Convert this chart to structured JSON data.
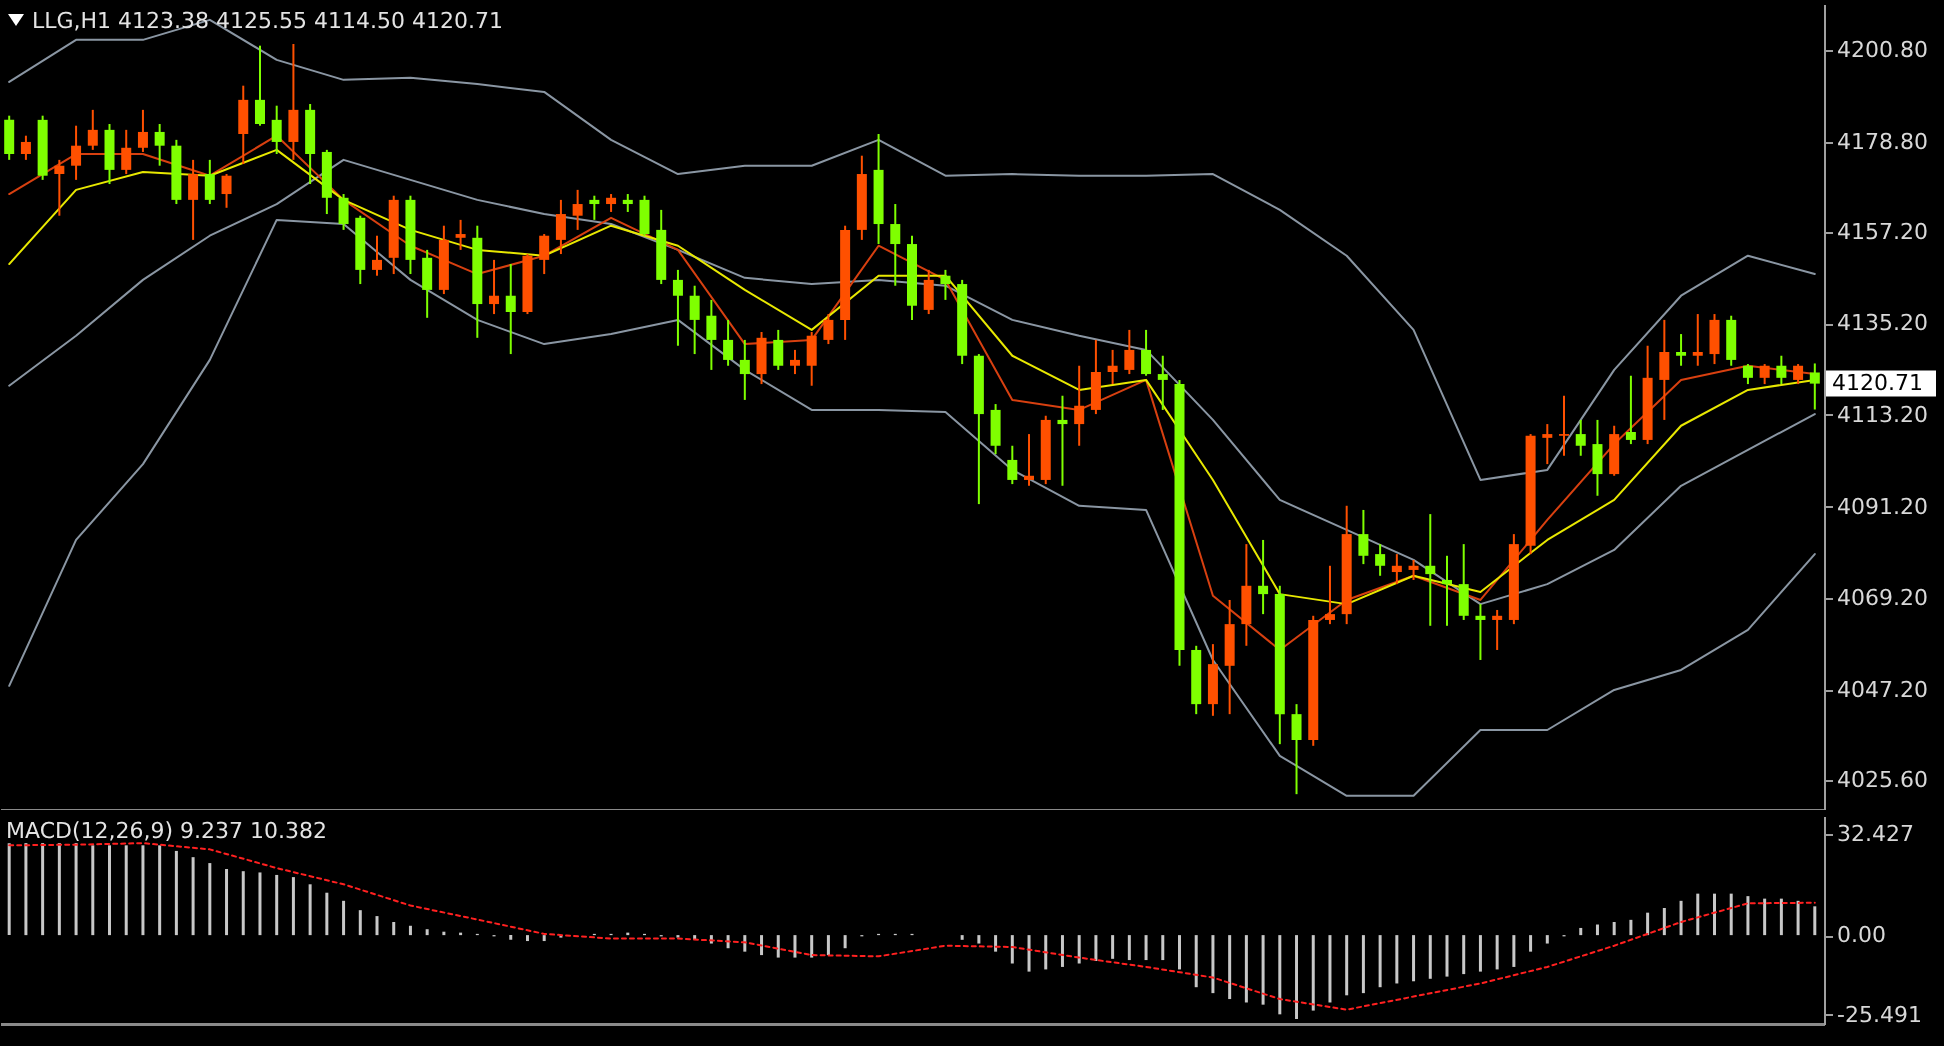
{
  "chart_data": [
    {
      "type": "candlestick",
      "title": "LLG,H1  4123.38 4125.55 4114.50 4120.71",
      "categories": [
        null,
        null,
        null,
        null,
        null,
        null,
        null,
        null,
        null,
        null,
        null,
        null,
        null,
        null,
        null,
        null,
        null,
        null,
        null,
        null,
        null,
        null,
        null,
        null,
        null,
        null,
        null,
        null,
        null,
        null,
        null,
        null,
        null,
        null,
        null,
        null,
        null,
        null,
        null,
        null,
        null,
        null,
        null,
        null,
        null,
        null,
        null,
        null,
        null,
        null,
        null,
        null,
        null,
        null,
        null,
        null,
        null,
        null,
        null,
        null,
        null,
        null,
        null,
        null,
        null,
        null,
        null,
        null,
        null,
        null,
        null,
        null,
        null,
        null,
        null,
        null,
        null,
        null,
        null,
        null,
        null,
        null,
        null,
        null,
        null,
        null,
        null,
        null,
        null,
        null,
        null,
        null,
        null,
        null,
        null,
        null,
        null,
        null,
        null,
        null,
        null,
        null,
        null,
        null,
        null,
        null,
        null,
        null,
        null
      ],
      "ohlc": [
        [
          4184.0,
          4185.0,
          4174.4,
          4175.8
        ],
        [
          4175.8,
          4180.2,
          4174.4,
          4178.7
        ],
        [
          4184.0,
          4185.0,
          4169.6,
          4170.6
        ],
        [
          4171.0,
          4174.4,
          4161.0,
          4173.0
        ],
        [
          4173.0,
          4182.6,
          4169.6,
          4177.8
        ],
        [
          4177.8,
          4186.4,
          4176.8,
          4181.6
        ],
        [
          4181.6,
          4183.0,
          4168.6,
          4172.0
        ],
        [
          4172.0,
          4181.6,
          4171.0,
          4177.3
        ],
        [
          4177.3,
          4186.4,
          4176.3,
          4181.1
        ],
        [
          4181.1,
          4183.0,
          4173.0,
          4177.8
        ],
        [
          4177.8,
          4179.2,
          4163.8,
          4164.8
        ],
        [
          4164.8,
          4174.4,
          4155.2,
          4171.0
        ],
        [
          4171.0,
          4174.4,
          4163.8,
          4164.8
        ],
        [
          4166.2,
          4171.0,
          4162.9,
          4170.6
        ],
        [
          4180.6,
          4192.2,
          4173.4,
          4188.8
        ],
        [
          4188.8,
          4201.8,
          4182.6,
          4183.0
        ],
        [
          4184.0,
          4187.4,
          4175.8,
          4178.7
        ],
        [
          4178.7,
          4202.2,
          4174.4,
          4186.4
        ],
        [
          4186.4,
          4187.8,
          4168.6,
          4175.8
        ],
        [
          4176.3,
          4176.8,
          4161.4,
          4165.3
        ],
        [
          4165.3,
          4166.2,
          4157.6,
          4159.0
        ],
        [
          4160.5,
          4161.0,
          4144.6,
          4148.0
        ],
        [
          4148.0,
          4156.2,
          4146.6,
          4150.4
        ],
        [
          4150.9,
          4165.8,
          4147.0,
          4164.8
        ],
        [
          4164.8,
          4165.8,
          4147.0,
          4150.4
        ],
        [
          4150.9,
          4152.8,
          4136.5,
          4143.2
        ],
        [
          4143.2,
          4158.6,
          4142.2,
          4155.2
        ],
        [
          4155.7,
          4160.0,
          4152.8,
          4156.6
        ],
        [
          4155.7,
          4158.6,
          4131.7,
          4139.8
        ],
        [
          4139.8,
          4150.4,
          4137.4,
          4141.8
        ],
        [
          4141.8,
          4149.4,
          4127.8,
          4137.9
        ],
        [
          4137.9,
          4151.8,
          4137.4,
          4151.4
        ],
        [
          4150.4,
          4156.6,
          4147.0,
          4156.2
        ],
        [
          4155.2,
          4164.8,
          4151.8,
          4161.4
        ],
        [
          4161.0,
          4167.2,
          4157.6,
          4163.8
        ],
        [
          4164.8,
          4165.8,
          4160.0,
          4163.8
        ],
        [
          4163.8,
          4166.2,
          4161.9,
          4165.3
        ],
        [
          4164.8,
          4166.2,
          4161.9,
          4163.8
        ],
        [
          4164.8,
          4165.8,
          4156.2,
          4156.6
        ],
        [
          4157.6,
          4162.4,
          4144.6,
          4145.6
        ],
        [
          4145.6,
          4148.0,
          4129.8,
          4141.8
        ],
        [
          4141.8,
          4144.2,
          4127.8,
          4136.0
        ],
        [
          4137.0,
          4140.8,
          4124.0,
          4131.2
        ],
        [
          4131.2,
          4136.0,
          4125.0,
          4126.4
        ],
        [
          4126.4,
          4131.2,
          4116.8,
          4123.0
        ],
        [
          4123.0,
          4133.1,
          4120.6,
          4131.7
        ],
        [
          4131.2,
          4133.6,
          4124.0,
          4125.0
        ],
        [
          4125.0,
          4128.8,
          4123.0,
          4126.4
        ],
        [
          4125.0,
          4133.1,
          4120.2,
          4132.2
        ],
        [
          4131.2,
          4137.4,
          4130.2,
          4136.0
        ],
        [
          4136.0,
          4158.6,
          4131.2,
          4157.6
        ],
        [
          4157.6,
          4175.4,
          4155.2,
          4171.0
        ],
        [
          4172.0,
          4180.6,
          4154.2,
          4159.0
        ],
        [
          4159.0,
          4163.8,
          4144.2,
          4154.2
        ],
        [
          4154.2,
          4156.2,
          4136.0,
          4139.4
        ],
        [
          4138.4,
          4148.0,
          4137.4,
          4145.6
        ],
        [
          4146.6,
          4148.0,
          4140.8,
          4144.6
        ],
        [
          4144.6,
          4145.6,
          4125.4,
          4127.4
        ],
        [
          4127.4,
          4127.8,
          4091.8,
          4113.4
        ],
        [
          4114.4,
          4115.8,
          4103.8,
          4105.8
        ],
        [
          4102.4,
          4105.8,
          4096.6,
          4097.6
        ],
        [
          4097.6,
          4108.6,
          4096.2,
          4098.6
        ],
        [
          4097.6,
          4113.0,
          4096.6,
          4112.0
        ],
        [
          4112.0,
          4117.8,
          4096.2,
          4111.0
        ],
        [
          4111.0,
          4125.0,
          4105.8,
          4115.4
        ],
        [
          4114.4,
          4131.2,
          4113.4,
          4123.5
        ],
        [
          4123.5,
          4128.8,
          4120.6,
          4125.0
        ],
        [
          4124.0,
          4133.6,
          4123.0,
          4128.8
        ],
        [
          4128.8,
          4133.6,
          4122.6,
          4123.0
        ],
        [
          4123.0,
          4127.4,
          4114.4,
          4121.6
        ],
        [
          4120.6,
          4121.6,
          4053.0,
          4056.8
        ],
        [
          4056.8,
          4057.8,
          4041.4,
          4043.8
        ],
        [
          4043.8,
          4058.2,
          4041.0,
          4053.4
        ],
        [
          4053.0,
          4068.8,
          4041.4,
          4063.0
        ],
        [
          4063.0,
          4082.2,
          4057.8,
          4072.2
        ],
        [
          4072.2,
          4083.2,
          4065.4,
          4070.2
        ],
        [
          4070.2,
          4072.2,
          4034.2,
          4041.4
        ],
        [
          4041.4,
          4043.8,
          4022.2,
          4035.2
        ],
        [
          4035.2,
          4065.0,
          4033.8,
          4064.0
        ],
        [
          4064.0,
          4077.0,
          4063.0,
          4065.4
        ],
        [
          4065.4,
          4091.4,
          4063.0,
          4084.6
        ],
        [
          4084.6,
          4090.4,
          4077.4,
          4079.4
        ],
        [
          4079.8,
          4082.2,
          4074.6,
          4077.0
        ],
        [
          4075.5,
          4079.8,
          4072.6,
          4077.0
        ],
        [
          4076.0,
          4078.4,
          4073.6,
          4077.0
        ],
        [
          4077.0,
          4089.4,
          4062.6,
          4075.0
        ],
        [
          4073.6,
          4079.4,
          4062.6,
          4072.6
        ],
        [
          4072.6,
          4082.2,
          4064.0,
          4065.0
        ],
        [
          4065.0,
          4067.8,
          4054.4,
          4064.0
        ],
        [
          4064.0,
          4066.4,
          4056.8,
          4065.0
        ],
        [
          4064.0,
          4084.6,
          4063.0,
          4082.2
        ],
        [
          4081.8,
          4108.6,
          4079.8,
          4108.2
        ],
        [
          4107.7,
          4111.0,
          4101.4,
          4108.6
        ],
        [
          4108.2,
          4117.8,
          4103.4,
          4108.6
        ],
        [
          4108.6,
          4112.0,
          4103.4,
          4105.8
        ],
        [
          4106.2,
          4112.0,
          4093.8,
          4099.0
        ],
        [
          4099.0,
          4110.6,
          4098.6,
          4108.6
        ],
        [
          4109.1,
          4122.6,
          4106.2,
          4107.2
        ],
        [
          4107.2,
          4129.8,
          4106.2,
          4122.1
        ],
        [
          4121.6,
          4136.0,
          4112.0,
          4128.3
        ],
        [
          4128.3,
          4132.6,
          4125.0,
          4127.4
        ],
        [
          4127.4,
          4137.4,
          4125.0,
          4128.3
        ],
        [
          4127.8,
          4137.4,
          4125.4,
          4136.0
        ],
        [
          4136.0,
          4137.0,
          4125.0,
          4126.4
        ],
        [
          4125.0,
          4125.4,
          4120.6,
          4122.1
        ],
        [
          4122.1,
          4125.4,
          4120.6,
          4125.0
        ],
        [
          4125.0,
          4127.4,
          4120.6,
          4122.1
        ],
        [
          4121.6,
          4125.4,
          4120.6,
          4125.0
        ],
        [
          4123.38,
          4125.55,
          4114.5,
          4120.71
        ]
      ],
      "colors": [
        "#7fff00",
        "#ff5000",
        "#7fff00",
        "#ff5000",
        "#ff5000",
        "#ff5000",
        "#7fff00",
        "#ff5000",
        "#ff5000",
        "#7fff00",
        "#7fff00",
        "#ff5000",
        "#7fff00",
        "#ff5000",
        "#ff5000",
        "#7fff00",
        "#7fff00",
        "#ff5000",
        "#7fff00",
        "#7fff00",
        "#7fff00",
        "#7fff00",
        "#ff5000",
        "#ff5000",
        "#7fff00",
        "#7fff00",
        "#ff5000",
        "#ff5000",
        "#7fff00",
        "#ff5000",
        "#7fff00",
        "#ff5000",
        "#ff5000",
        "#ff5000",
        "#ff5000",
        "#7fff00",
        "#ff5000",
        "#7fff00",
        "#7fff00",
        "#7fff00",
        "#7fff00",
        "#7fff00",
        "#7fff00",
        "#7fff00",
        "#7fff00",
        "#ff5000",
        "#7fff00",
        "#ff5000",
        "#ff5000",
        "#ff5000",
        "#ff5000",
        "#ff5000",
        "#7fff00",
        "#7fff00",
        "#7fff00",
        "#ff5000",
        "#7fff00",
        "#7fff00",
        "#7fff00",
        "#7fff00",
        "#7fff00",
        "#ff5000",
        "#ff5000",
        "#7fff00",
        "#ff5000",
        "#ff5000",
        "#ff5000",
        "#ff5000",
        "#7fff00",
        "#7fff00",
        "#7fff00",
        "#7fff00",
        "#ff5000",
        "#ff5000",
        "#ff5000",
        "#7fff00",
        "#7fff00",
        "#7fff00",
        "#ff5000",
        "#ff5000",
        "#ff5000",
        "#7fff00",
        "#7fff00",
        "#ff5000",
        "#ff5000",
        "#7fff00",
        "#7fff00",
        "#7fff00",
        "#7fff00",
        "#ff5000",
        "#ff5000",
        "#ff5000",
        "#ff5000",
        "#ff5000",
        "#7fff00",
        "#7fff00",
        "#ff5000",
        "#7fff00",
        "#ff5000",
        "#ff5000",
        "#7fff00",
        "#ff5000",
        "#ff5000",
        "#7fff00",
        "#7fff00",
        "#ff5000",
        "#7fff00",
        "#ff5000",
        "#7fff00"
      ],
      "series": [
        {
          "type": "line",
          "color": "#8a96a3",
          "values": [
            4193.1,
            null,
            null,
            null,
            4203.2,
            null,
            null,
            null,
            4203.2,
            null,
            null,
            null,
            4208.0,
            null,
            null,
            null,
            4198.4,
            null,
            null,
            null,
            4193.6,
            null,
            null,
            null,
            4194.1,
            null,
            null,
            null,
            4192.6,
            null,
            null,
            null,
            4190.7,
            null,
            null,
            null,
            4179.2,
            null,
            null,
            null,
            4171.0,
            null,
            null,
            null,
            4173.0,
            null,
            null,
            null,
            4173.0,
            null,
            null,
            null,
            4179.2,
            null,
            null,
            null,
            4170.6,
            null,
            null,
            null,
            4171.0,
            null,
            null,
            null,
            4170.6,
            null,
            null,
            null,
            4170.6,
            null,
            null,
            null,
            4171.0,
            null,
            null,
            null,
            4162.4,
            null,
            null,
            null,
            4151.4,
            null,
            null,
            null,
            4133.6,
            null,
            null,
            null,
            4097.6,
            null,
            null,
            null,
            4100.0,
            null,
            null,
            null,
            4124.0,
            null,
            null,
            null,
            4141.8,
            null,
            null,
            null,
            4151.4,
            null,
            null,
            null,
            4147.0
          ]
        },
        {
          "type": "line",
          "color": "#8a96a3",
          "values": [
            4120.2,
            null,
            null,
            null,
            4132.2,
            null,
            null,
            null,
            4145.6,
            null,
            null,
            null,
            4156.2,
            null,
            null,
            null,
            4163.8,
            null,
            null,
            null,
            4174.4,
            null,
            null,
            null,
            4169.6,
            null,
            null,
            null,
            4164.8,
            null,
            null,
            null,
            4161.4,
            null,
            null,
            null,
            4159.0,
            null,
            null,
            null,
            4152.8,
            null,
            null,
            null,
            4146.1,
            null,
            null,
            null,
            4144.6,
            null,
            null,
            null,
            4145.6,
            null,
            null,
            null,
            4144.2,
            null,
            null,
            null,
            4136.0,
            null,
            null,
            null,
            4132.2,
            null,
            null,
            null,
            4128.8,
            null,
            null,
            null,
            4112.0,
            null,
            null,
            null,
            4092.8,
            null,
            null,
            null,
            4085.6,
            null,
            null,
            null,
            4078.4,
            null,
            null,
            null,
            4067.8,
            null,
            null,
            null,
            4072.6,
            null,
            null,
            null,
            4080.8,
            null,
            null,
            null,
            4096.2,
            null,
            null,
            null,
            4104.8,
            null,
            null,
            null,
            4113.4
          ]
        },
        {
          "type": "line",
          "color": "#8a96a3",
          "values": [
            4048.2,
            null,
            null,
            null,
            4083.2,
            null,
            null,
            null,
            4101.4,
            null,
            null,
            null,
            4126.4,
            null,
            null,
            null,
            4160.0,
            null,
            null,
            null,
            4159.0,
            null,
            null,
            null,
            4145.6,
            null,
            null,
            null,
            4136.0,
            null,
            null,
            null,
            4130.2,
            null,
            null,
            null,
            4132.6,
            null,
            null,
            null,
            4136.0,
            null,
            null,
            null,
            4124.0,
            null,
            null,
            null,
            4114.4,
            null,
            null,
            null,
            4114.4,
            null,
            null,
            null,
            4113.9,
            null,
            null,
            null,
            4100.0,
            null,
            null,
            null,
            4091.4,
            null,
            null,
            null,
            4090.4,
            null,
            null,
            null,
            4054.4,
            null,
            null,
            null,
            4031.4,
            null,
            null,
            null,
            4021.8,
            null,
            null,
            null,
            4021.8,
            null,
            null,
            null,
            4037.6,
            null,
            null,
            null,
            4037.6,
            null,
            null,
            null,
            4047.2,
            null,
            null,
            null,
            4052.0,
            null,
            null,
            null,
            4061.6,
            null,
            null,
            null,
            4079.8
          ]
        },
        {
          "type": "line",
          "color": "#d84010",
          "values": [
            4166.2,
            null,
            null,
            null,
            4175.8,
            null,
            null,
            null,
            4175.8,
            null,
            null,
            null,
            4170.6,
            null,
            null,
            null,
            4180.2,
            null,
            null,
            null,
            4164.8,
            null,
            null,
            null,
            4153.8,
            null,
            null,
            null,
            4147.0,
            null,
            null,
            null,
            4151.4,
            null,
            null,
            null,
            4160.5,
            null,
            null,
            null,
            4152.8,
            null,
            null,
            null,
            4130.2,
            null,
            null,
            null,
            4131.2,
            null,
            null,
            null,
            4153.8,
            null,
            null,
            null,
            4145.6,
            null,
            null,
            null,
            4116.8,
            null,
            null,
            null,
            4114.4,
            null,
            null,
            null,
            4121.6,
            null,
            null,
            null,
            4069.8,
            null,
            null,
            null,
            4056.8,
            null,
            null,
            null,
            4068.8,
            null,
            null,
            null,
            4074.6,
            null,
            null,
            null,
            4068.8,
            null,
            null,
            null,
            4088.0,
            null,
            null,
            null,
            4106.2,
            null,
            null,
            null,
            4121.6,
            null,
            null,
            null,
            4125.0,
            null,
            null,
            null,
            4123.0
          ]
        },
        {
          "type": "line",
          "color": "#e8e800",
          "values": [
            4149.4,
            null,
            null,
            null,
            4167.2,
            null,
            null,
            null,
            4171.5,
            null,
            null,
            null,
            4170.6,
            null,
            null,
            null,
            4176.8,
            null,
            null,
            null,
            4164.8,
            null,
            null,
            null,
            4157.6,
            null,
            null,
            null,
            4152.8,
            null,
            null,
            null,
            4151.4,
            null,
            null,
            null,
            4158.6,
            null,
            null,
            null,
            4153.8,
            null,
            null,
            null,
            4143.2,
            null,
            null,
            null,
            4133.6,
            null,
            null,
            null,
            4146.6,
            null,
            null,
            null,
            4146.6,
            null,
            null,
            null,
            4127.4,
            null,
            null,
            null,
            4119.2,
            null,
            null,
            null,
            4121.6,
            null,
            null,
            null,
            4097.6,
            null,
            null,
            null,
            4070.2,
            null,
            null,
            null,
            4067.8,
            null,
            null,
            null,
            4074.6,
            null,
            null,
            null,
            4070.7,
            null,
            null,
            null,
            4083.2,
            null,
            null,
            null,
            4092.8,
            null,
            null,
            null,
            4110.6,
            null,
            null,
            null,
            4119.2,
            null,
            null,
            null,
            4121.6
          ]
        }
      ],
      "ylim": [
        4018.4,
        4211.8
      ],
      "yticks": [
        {
          "value": 4200.8,
          "label": "4200.80"
        },
        {
          "value": 4178.8,
          "label": "4178.80"
        },
        {
          "value": 4157.2,
          "label": "4157.20"
        },
        {
          "value": 4135.2,
          "label": "4135.20"
        },
        {
          "value": 4113.2,
          "label": "4113.20"
        },
        {
          "value": 4091.2,
          "label": "4091.20"
        },
        {
          "value": 4069.2,
          "label": "4069.20"
        },
        {
          "value": 4047.2,
          "label": "4047.20"
        },
        {
          "value": 4025.6,
          "label": "4025.60"
        }
      ],
      "ref_lines": [
        {
          "axis": "y",
          "value": 4120.71,
          "label": "4120.71",
          "color": "#ffffff"
        }
      ],
      "tick_labels": "y"
    },
    {
      "type": "bar",
      "title": "MACD(12,26,9) 9.237 10.382",
      "categories": [
        null,
        null,
        null,
        null,
        null,
        null,
        null,
        null,
        null,
        null,
        null,
        null,
        null,
        null,
        null,
        null,
        null,
        null,
        null,
        null,
        null,
        null,
        null,
        null,
        null,
        null,
        null,
        null,
        null,
        null,
        null,
        null,
        null,
        null,
        null,
        null,
        null,
        null,
        null,
        null,
        null,
        null,
        null,
        null,
        null,
        null,
        null,
        null,
        null,
        null,
        null,
        null,
        null,
        null,
        null,
        null,
        null,
        null,
        null,
        null,
        null,
        null,
        null,
        null,
        null,
        null,
        null,
        null,
        null,
        null,
        null,
        null,
        null,
        null,
        null,
        null,
        null,
        null,
        null,
        null,
        null,
        null,
        null,
        null,
        null,
        null,
        null,
        null,
        null,
        null,
        null,
        null,
        null,
        null,
        null,
        null,
        null,
        null,
        null,
        null,
        null,
        null,
        null,
        null,
        null,
        null,
        null,
        null,
        null
      ],
      "series": [
        {
          "type": "bar",
          "color": "#c8c8c8",
          "values": [
            29.5,
            29.5,
            29.5,
            29.5,
            29.5,
            28.8,
            28.8,
            28.8,
            28.8,
            28.8,
            27.0,
            25.0,
            23.1,
            21.2,
            20.5,
            20.1,
            19.3,
            18.6,
            16.3,
            13.6,
            11.0,
            8.0,
            6.1,
            4.2,
            3.0,
            1.9,
            1.1,
            0.8,
            0.4,
            -0.4,
            -1.5,
            -1.9,
            -1.9,
            -0.8,
            null,
            0.4,
            0.4,
            0.8,
            0.4,
            -0.4,
            -0.8,
            -1.5,
            -2.7,
            -4.2,
            -5.3,
            -6.4,
            -7.2,
            -7.2,
            -7.2,
            -6.4,
            -4.2,
            -0.4,
            0.4,
            0.4,
            0.4,
            0.0,
            null,
            -1.5,
            -2.7,
            -5.3,
            -9.1,
            -11.7,
            -11.0,
            -10.2,
            -9.1,
            -8.3,
            -7.6,
            -8.0,
            -8.0,
            -8.0,
            -11.0,
            -16.7,
            -18.6,
            -20.5,
            -21.6,
            -22.3,
            -25.4,
            -26.9,
            -24.2,
            -21.6,
            -19.3,
            -18.6,
            -16.7,
            -15.5,
            -14.8,
            -14.0,
            -13.3,
            -12.5,
            -11.7,
            -11.0,
            -10.2,
            -5.3,
            -2.7,
            -0.4,
            2.3,
            3.4,
            4.2,
            4.9,
            7.2,
            8.7,
            11.0,
            13.3,
            13.3,
            13.3,
            12.5,
            11.7,
            11.7,
            11.0,
            9.237
          ]
        },
        {
          "type": "line",
          "color": "#ff2020",
          "line_style": "dotted",
          "values": [
            28.8,
            null,
            null,
            null,
            29.0,
            null,
            null,
            null,
            29.5,
            null,
            null,
            null,
            27.5,
            null,
            null,
            null,
            21.5,
            null,
            null,
            null,
            16.3,
            null,
            null,
            null,
            9.5,
            null,
            null,
            null,
            5.0,
            null,
            null,
            null,
            0.4,
            null,
            null,
            null,
            -1.1,
            null,
            null,
            null,
            -1.1,
            null,
            null,
            null,
            -2.3,
            null,
            null,
            null,
            -6.4,
            null,
            null,
            null,
            -6.8,
            null,
            null,
            null,
            -3.4,
            null,
            null,
            null,
            -3.8,
            null,
            null,
            null,
            -7.2,
            null,
            null,
            null,
            -10.2,
            null,
            null,
            null,
            -13.6,
            null,
            null,
            null,
            -20.5,
            null,
            null,
            null,
            -23.9,
            null,
            null,
            null,
            -19.7,
            null,
            null,
            null,
            -15.5,
            null,
            null,
            null,
            -10.2,
            null,
            null,
            null,
            -3.4,
            null,
            null,
            null,
            4.2,
            null,
            null,
            null,
            10.2,
            null,
            null,
            null,
            10.382
          ]
        }
      ],
      "ylim": [
        -28.5,
        38.2
      ],
      "yticks": [
        32.427,
        {
          "value": 0,
          "label": "0.00"
        },
        -25.491
      ],
      "tick_labels": "y"
    }
  ]
}
